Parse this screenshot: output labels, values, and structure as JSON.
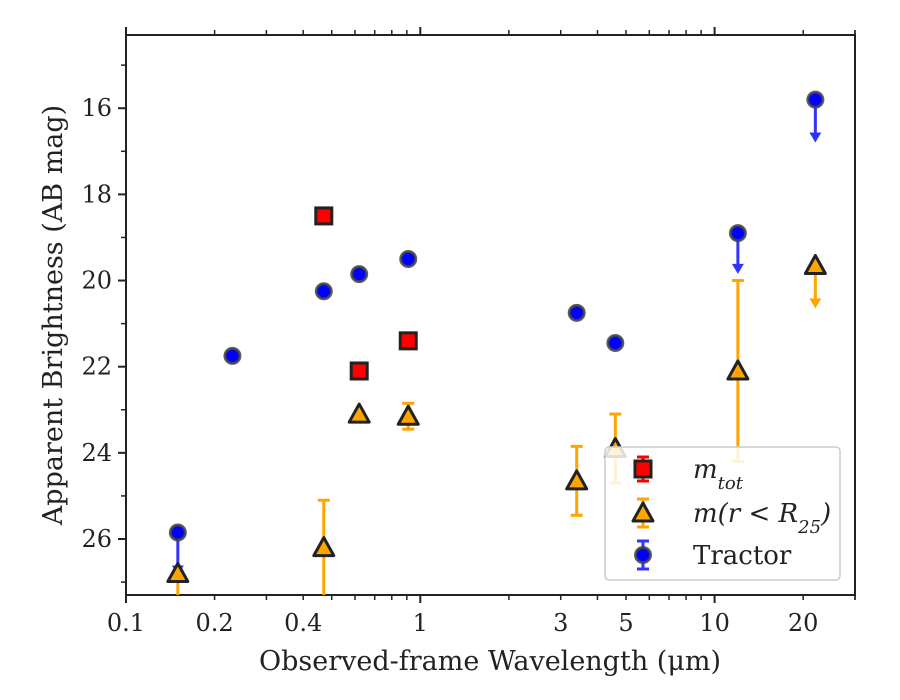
{
  "chart_data": {
    "type": "scatter",
    "title": "",
    "xlabel": "Observed-frame Wavelength (μm)",
    "ylabel": "Apparent Brightness (AB mag)",
    "x_scale": "log",
    "xlim": [
      0.1,
      30
    ],
    "ylim": [
      27.3,
      14.3
    ],
    "y_inverted": true,
    "x_tick_labels": [
      "0.1",
      "0.2",
      "0.4",
      "1",
      "3",
      "5",
      "10",
      "20"
    ],
    "x_ticks": [
      0.1,
      0.2,
      0.4,
      1,
      3,
      5,
      10,
      20
    ],
    "y_ticks": [
      16,
      18,
      20,
      22,
      24,
      26
    ],
    "y_tick_labels": [
      "16",
      "18",
      "20",
      "22",
      "24",
      "26"
    ],
    "grid": false,
    "legend_position": "lower-right",
    "colors": {
      "m_tot": "#ff0000",
      "m_r25": "#ffa500",
      "tractor_fill": "#0000ff",
      "tractor_err": "#3333ff",
      "marker_edge": "#222222"
    },
    "series": [
      {
        "name": "m_tot",
        "legend_text": "m",
        "legend_sub": "tot",
        "marker": "square",
        "points": [
          {
            "x": 0.47,
            "y": 18.5
          },
          {
            "x": 0.62,
            "y": 22.1
          },
          {
            "x": 0.91,
            "y": 21.4
          }
        ]
      },
      {
        "name": "m(r < R25)",
        "legend_text": "m(r < R",
        "legend_sub": "25",
        "legend_close": ")",
        "marker": "triangle",
        "points": [
          {
            "x": 0.15,
            "y": 26.8,
            "err_lo": 0.8,
            "err_hi": 0.0
          },
          {
            "x": 0.47,
            "y": 26.2,
            "err_lo": 1.5,
            "err_hi": 1.1
          },
          {
            "x": 0.62,
            "y": 23.1,
            "err_lo": 0.0,
            "err_hi": 0.0
          },
          {
            "x": 0.91,
            "y": 23.15,
            "err_lo": 0.3,
            "err_hi": 0.3
          },
          {
            "x": 3.4,
            "y": 24.65,
            "err_lo": 0.8,
            "err_hi": 0.8
          },
          {
            "x": 4.6,
            "y": 23.9,
            "err_lo": 0.8,
            "err_hi": 0.8
          },
          {
            "x": 12.0,
            "y": 22.1,
            "err_lo": 2.1,
            "err_hi": 2.1
          },
          {
            "x": 22.0,
            "y": 19.65,
            "upper_limit": true,
            "arrow_to": 20.6
          }
        ]
      },
      {
        "name": "Tractor",
        "legend_text": "Tractor",
        "marker": "circle",
        "points": [
          {
            "x": 0.15,
            "y": 25.85,
            "upper_limit": true,
            "arrow_to": 26.8
          },
          {
            "x": 0.23,
            "y": 21.75
          },
          {
            "x": 0.47,
            "y": 20.25
          },
          {
            "x": 0.62,
            "y": 19.85
          },
          {
            "x": 0.91,
            "y": 19.5
          },
          {
            "x": 3.4,
            "y": 20.75
          },
          {
            "x": 4.6,
            "y": 21.45
          },
          {
            "x": 12.0,
            "y": 18.9,
            "upper_limit": true,
            "arrow_to": 19.8
          },
          {
            "x": 22.0,
            "y": 15.8,
            "upper_limit": true,
            "arrow_to": 16.75
          }
        ]
      }
    ]
  }
}
